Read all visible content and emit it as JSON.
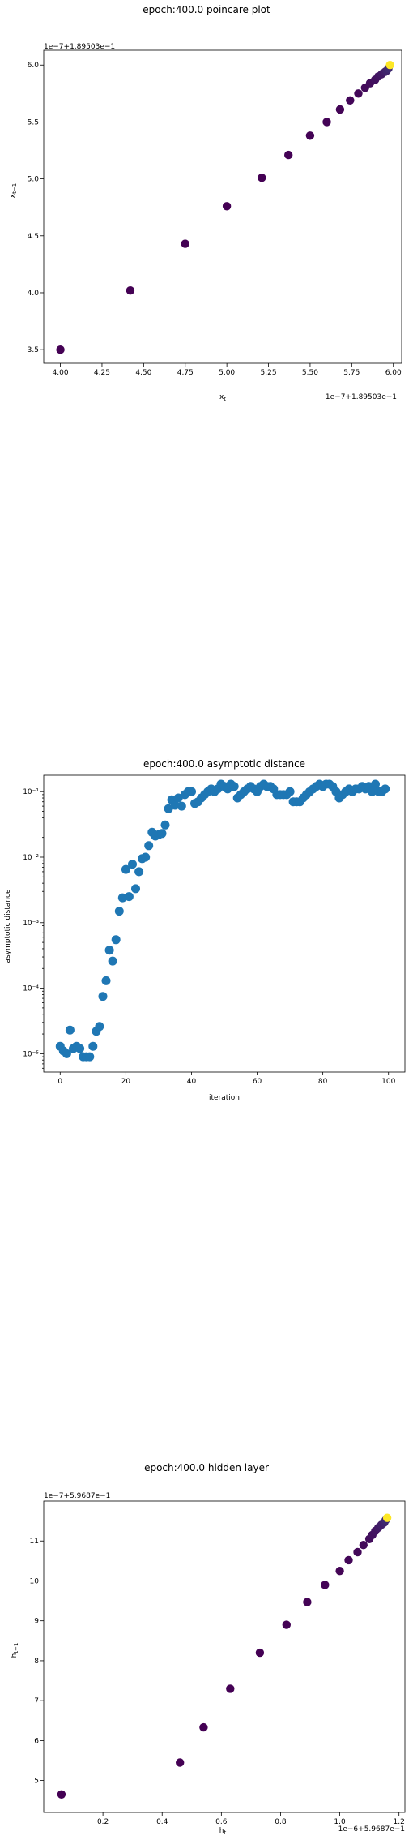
{
  "colors": {
    "viridis_dark": "#440154",
    "viridis_mid": "#3b528b",
    "viridis_end": "#fde725",
    "blue_points": "#1f77b4"
  },
  "chart_data": [
    {
      "type": "scatter",
      "title": "epoch:400.0 poincare plot",
      "xlabel": "x_t",
      "ylabel": "x_{t-1}",
      "x_offset_text": "1e−7+1.89503e−1",
      "y_offset_text": "1e−7+1.89503e−1",
      "xlim": [
        3.9,
        6.05
      ],
      "ylim": [
        3.38,
        6.13
      ],
      "x_scale": "linear",
      "y_scale": "linear",
      "xticks": [
        4.0,
        4.25,
        4.5,
        4.75,
        5.0,
        5.25,
        5.5,
        5.75,
        6.0
      ],
      "xtick_labels": [
        "4.00",
        "4.25",
        "4.50",
        "4.75",
        "5.00",
        "5.25",
        "5.50",
        "5.75",
        "6.00"
      ],
      "yticks": [
        3.5,
        4.0,
        4.5,
        5.0,
        5.5,
        6.0
      ],
      "ytick_labels": [
        "3.5",
        "4.0",
        "4.5",
        "5.0",
        "5.5",
        "6.0"
      ],
      "colormap": "viridis",
      "x": [
        4.0,
        4.42,
        4.75,
        5.0,
        5.21,
        5.37,
        5.5,
        5.6,
        5.68,
        5.74,
        5.79,
        5.83,
        5.86,
        5.89,
        5.91,
        5.93,
        5.95,
        5.96,
        5.97,
        5.98
      ],
      "y": [
        3.5,
        4.02,
        4.43,
        4.76,
        5.01,
        5.21,
        5.38,
        5.5,
        5.61,
        5.69,
        5.75,
        5.8,
        5.84,
        5.87,
        5.9,
        5.92,
        5.94,
        5.95,
        5.97,
        6.0
      ]
    },
    {
      "type": "scatter",
      "title": "epoch:400.0 asymptotic distance",
      "xlabel": "iteration",
      "ylabel": "asymptotic distance",
      "x_scale": "linear",
      "y_scale": "log",
      "xlim": [
        -5,
        105
      ],
      "ylim_log10": [
        -5.28,
        -0.75
      ],
      "xticks": [
        0,
        20,
        40,
        60,
        80,
        100
      ],
      "xtick_labels": [
        "0",
        "20",
        "40",
        "60",
        "80",
        "100"
      ],
      "yticks_log10": [
        -5,
        -4,
        -3,
        -2,
        -1
      ],
      "ytick_labels": [
        "10⁻⁵",
        "10⁻⁴",
        "10⁻³",
        "10⁻²",
        "10⁻¹"
      ],
      "x": [
        0,
        1,
        2,
        3,
        4,
        5,
        6,
        7,
        8,
        9,
        10,
        11,
        12,
        13,
        14,
        15,
        16,
        17,
        18,
        19,
        20,
        21,
        22,
        23,
        24,
        25,
        26,
        27,
        28,
        29,
        30,
        31,
        32,
        33,
        34,
        35,
        36,
        37,
        38,
        39,
        40,
        41,
        42,
        43,
        44,
        45,
        46,
        47,
        48,
        49,
        50,
        51,
        52,
        53,
        54,
        55,
        56,
        57,
        58,
        59,
        60,
        61,
        62,
        63,
        64,
        65,
        66,
        67,
        68,
        69,
        70,
        71,
        72,
        73,
        74,
        75,
        76,
        77,
        78,
        79,
        80,
        81,
        82,
        83,
        84,
        85,
        86,
        87,
        88,
        89,
        90,
        91,
        92,
        93,
        94,
        95,
        96,
        97,
        98,
        99
      ],
      "y": [
        1.3e-05,
        1.1e-05,
        1e-05,
        2.3e-05,
        1.2e-05,
        1.3e-05,
        1.2e-05,
        9e-06,
        9e-06,
        9e-06,
        1.3e-05,
        2.2e-05,
        2.6e-05,
        7.5e-05,
        0.00013,
        0.00038,
        0.00026,
        0.00055,
        0.0015,
        0.0024,
        0.0065,
        0.0025,
        0.0078,
        0.0033,
        0.006,
        0.0095,
        0.01,
        0.015,
        0.024,
        0.021,
        0.022,
        0.023,
        0.031,
        0.055,
        0.075,
        0.062,
        0.08,
        0.06,
        0.09,
        0.1,
        0.1,
        0.066,
        0.07,
        0.08,
        0.09,
        0.1,
        0.11,
        0.1,
        0.11,
        0.13,
        0.12,
        0.11,
        0.13,
        0.12,
        0.08,
        0.09,
        0.1,
        0.11,
        0.12,
        0.11,
        0.1,
        0.12,
        0.13,
        0.12,
        0.12,
        0.11,
        0.09,
        0.09,
        0.09,
        0.09,
        0.1,
        0.07,
        0.07,
        0.07,
        0.08,
        0.09,
        0.1,
        0.11,
        0.12,
        0.13,
        0.12,
        0.13,
        0.13,
        0.12,
        0.1,
        0.08,
        0.09,
        0.1,
        0.11,
        0.1,
        0.11,
        0.11,
        0.12,
        0.11,
        0.12,
        0.1,
        0.13,
        0.1,
        0.1,
        0.11
      ]
    },
    {
      "type": "scatter",
      "title": "epoch:400.0 hidden layer",
      "xlabel": "h_t",
      "ylabel": "h_{t-1}",
      "x_offset_text": "1e−6+5.9687e−1",
      "y_offset_text": "1e−7+5.9687e−1",
      "x_scale": "linear",
      "y_scale": "linear",
      "xlim": [
        0.0,
        1.22
      ],
      "ylim": [
        4.2,
        12.0
      ],
      "xticks": [
        0.2,
        0.4,
        0.6,
        0.8,
        1.0,
        1.2
      ],
      "xtick_labels": [
        "0.2",
        "0.4",
        "0.6",
        "0.8",
        "1.0",
        "1.2"
      ],
      "yticks": [
        5,
        6,
        7,
        8,
        9,
        10,
        11
      ],
      "ytick_labels": [
        "5",
        "6",
        "7",
        "8",
        "9",
        "10",
        "11"
      ],
      "colormap": "viridis",
      "x": [
        0.06,
        0.46,
        0.54,
        0.63,
        0.73,
        0.82,
        0.89,
        0.95,
        1.0,
        1.03,
        1.06,
        1.08,
        1.1,
        1.11,
        1.12,
        1.13,
        1.14,
        1.15,
        1.155,
        1.16
      ],
      "y": [
        4.65,
        5.45,
        6.33,
        7.3,
        8.2,
        8.9,
        9.47,
        9.9,
        10.25,
        10.52,
        10.72,
        10.9,
        11.05,
        11.15,
        11.25,
        11.33,
        11.4,
        11.46,
        11.52,
        11.58
      ]
    }
  ]
}
